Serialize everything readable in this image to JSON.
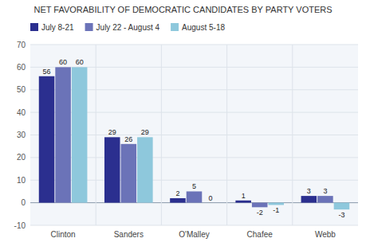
{
  "chart_data": {
    "type": "bar",
    "title": "NET FAVORABILITY OF DEMOCRATIC CANDIDATES BY PARTY VOTERS",
    "categories": [
      "Clinton",
      "Sanders",
      "O'Malley",
      "Chafee",
      "Webb"
    ],
    "series": [
      {
        "name": "July 8-21",
        "color": "#2B2F8F",
        "values": [
          56,
          29,
          2,
          1,
          3
        ]
      },
      {
        "name": "July 22 - August 4",
        "color": "#6B73B8",
        "values": [
          60,
          26,
          5,
          -2,
          3
        ]
      },
      {
        "name": "August 5-18",
        "color": "#8EC8DC",
        "values": [
          60,
          29,
          0,
          -1,
          -3
        ]
      }
    ],
    "ylim": [
      -10,
      70
    ],
    "yticks": [
      -10,
      0,
      10,
      20,
      30,
      40,
      50,
      60,
      70
    ],
    "grid": true,
    "legend": "top-left",
    "data_labels": true
  }
}
